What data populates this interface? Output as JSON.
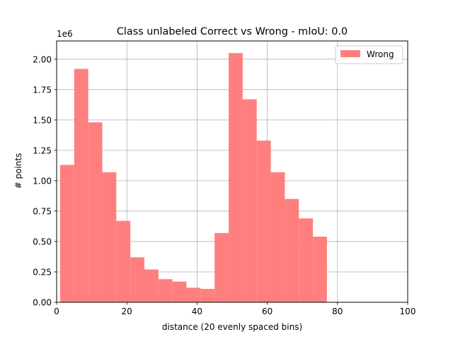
{
  "chart_data": {
    "type": "bar",
    "title": "Class unlabeled Correct vs Wrong - mIoU: 0.0",
    "xlabel": "distance (20 evenly spaced bins)",
    "ylabel": "# points",
    "y_offset_label": "1e6",
    "xlim": [
      0,
      100
    ],
    "ylim": [
      0,
      2.15
    ],
    "x_ticks": [
      0,
      20,
      40,
      60,
      80,
      100
    ],
    "x_tick_labels": [
      "0",
      "20",
      "40",
      "60",
      "80",
      "100"
    ],
    "y_ticks": [
      0,
      0.25,
      0.5,
      0.75,
      1.0,
      1.25,
      1.5,
      1.75,
      2.0
    ],
    "y_tick_labels": [
      "0.00",
      "0.25",
      "0.50",
      "0.75",
      "1.00",
      "1.25",
      "1.50",
      "1.75",
      "2.00"
    ],
    "grid": true,
    "legend_position": "top-right",
    "series": [
      {
        "name": "Wrong",
        "color": "#ff7f7f",
        "bin_edges": [
          1,
          5,
          9,
          13,
          17,
          21,
          25,
          29,
          33,
          37,
          41,
          45,
          49,
          53,
          57,
          61,
          65,
          69,
          73,
          77,
          81
        ],
        "values": [
          1.13,
          1.92,
          1.48,
          1.07,
          0.67,
          0.37,
          0.27,
          0.19,
          0.17,
          0.12,
          0.11,
          0.57,
          2.05,
          1.67,
          1.33,
          1.07,
          0.85,
          0.69,
          0.54,
          0.0
        ]
      }
    ]
  }
}
